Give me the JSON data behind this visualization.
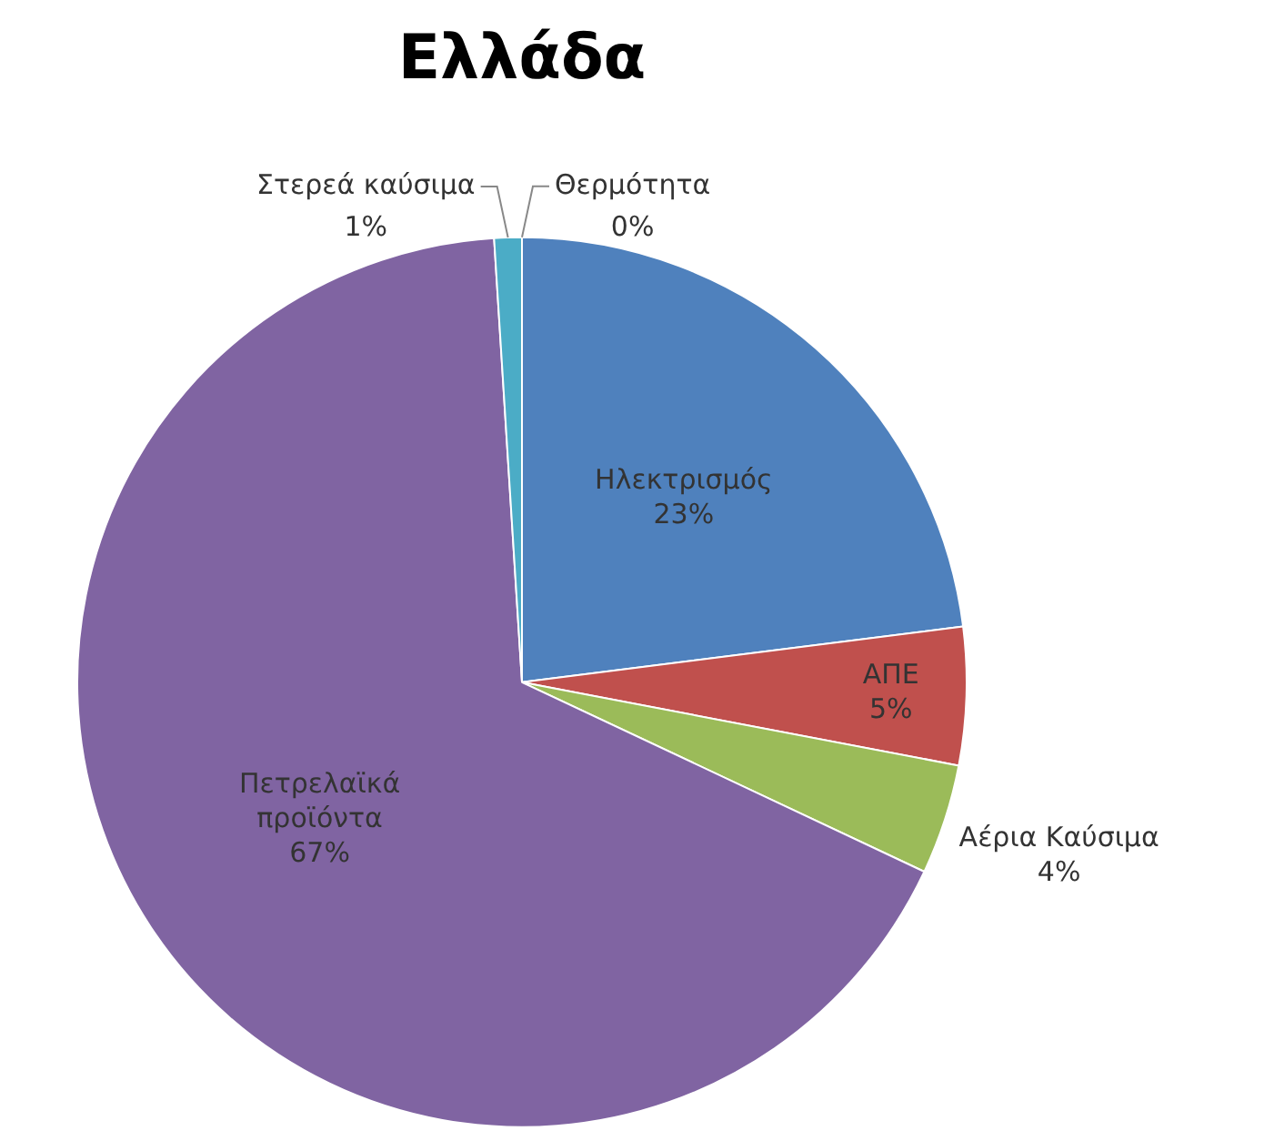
{
  "chart_data": {
    "type": "pie",
    "title": "Ελλάδα",
    "categories": [
      "Ηλεκτρισμός",
      "ΑΠΕ",
      "Αέρια Καύσιμα",
      "Πετρελαϊκά προϊόντα",
      "Στερεά καύσιμα",
      "Θερμότητα"
    ],
    "values": [
      23,
      5,
      4,
      67,
      1,
      0
    ],
    "value_labels": [
      "23%",
      "5%",
      "4%",
      "67%",
      "1%",
      "0%"
    ],
    "colors": [
      "#4f81bd",
      "#c0504d",
      "#9bbb59",
      "#8064a2",
      "#4bacc6",
      "#f79646"
    ],
    "legend": false
  }
}
